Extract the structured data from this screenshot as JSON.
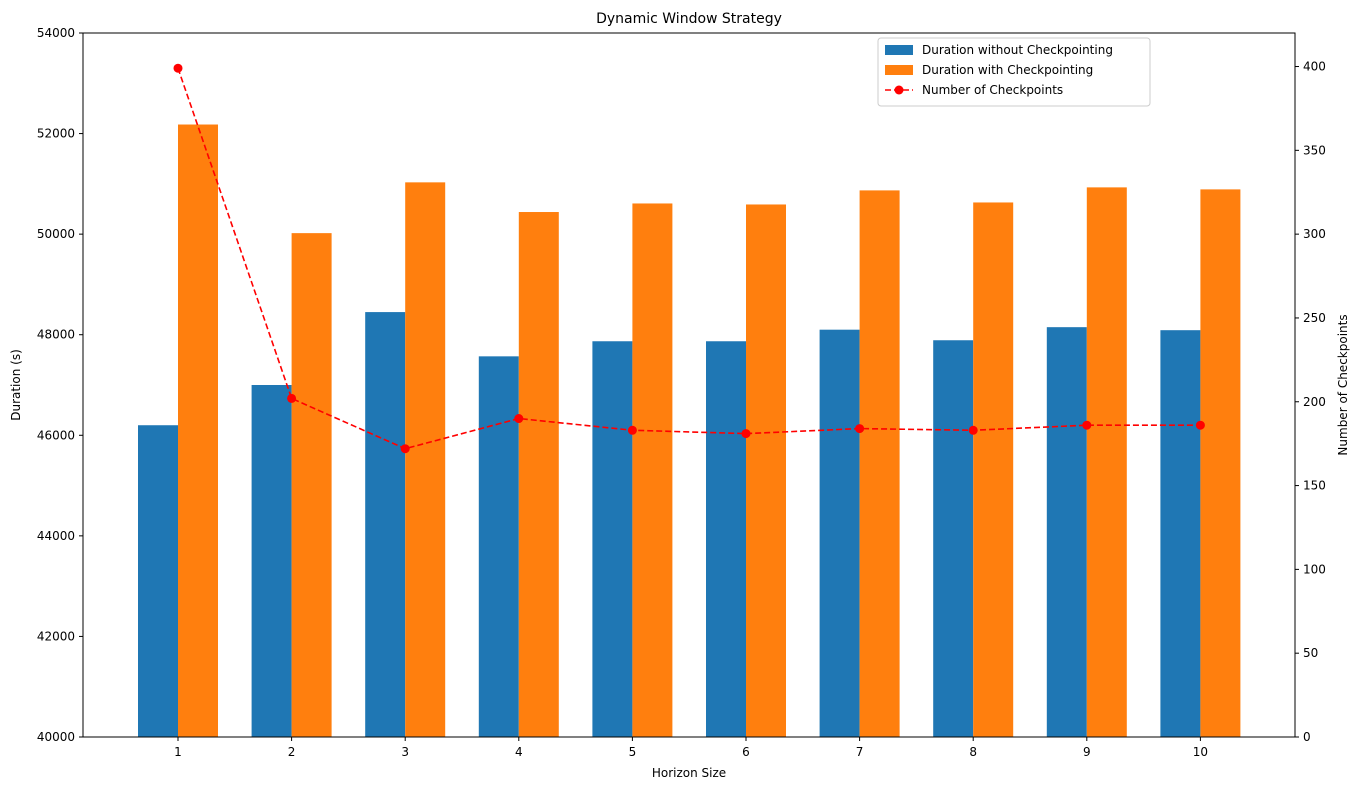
{
  "chart_data": {
    "type": "bar",
    "title": "Dynamic Window Strategy",
    "xlabel": "Horizon Size",
    "ylabel": "Duration (s)",
    "y2label": "Number of Checkpoints",
    "categories": [
      "1",
      "2",
      "3",
      "4",
      "5",
      "6",
      "7",
      "8",
      "9",
      "10"
    ],
    "ylim": [
      40000,
      54000
    ],
    "y_ticks": [
      "40000",
      "42000",
      "44000",
      "46000",
      "48000",
      "50000",
      "52000",
      "54000"
    ],
    "y2lim": [
      0,
      420
    ],
    "y2_ticks": [
      "0",
      "50",
      "100",
      "150",
      "200",
      "250",
      "300",
      "350",
      "400"
    ],
    "legend_position": "top-right",
    "grid": false,
    "series": [
      {
        "name": "Duration without Checkpointing",
        "kind": "bar",
        "axis": "left",
        "color": "#1f77b4",
        "values": [
          46200,
          47000,
          48450,
          47570,
          47870,
          47870,
          48100,
          47890,
          48150,
          48090
        ]
      },
      {
        "name": "Duration with Checkpointing",
        "kind": "bar",
        "axis": "left",
        "color": "#ff7f0e",
        "values": [
          52180,
          50020,
          51030,
          50440,
          50610,
          50590,
          50870,
          50630,
          50930,
          50890
        ]
      },
      {
        "name": "Number of Checkpoints",
        "kind": "line",
        "axis": "right",
        "color": "#ff0000",
        "style": "dashed",
        "marker": "circle",
        "values": [
          399,
          202,
          172,
          190,
          183,
          181,
          184,
          183,
          186,
          186
        ]
      }
    ]
  }
}
